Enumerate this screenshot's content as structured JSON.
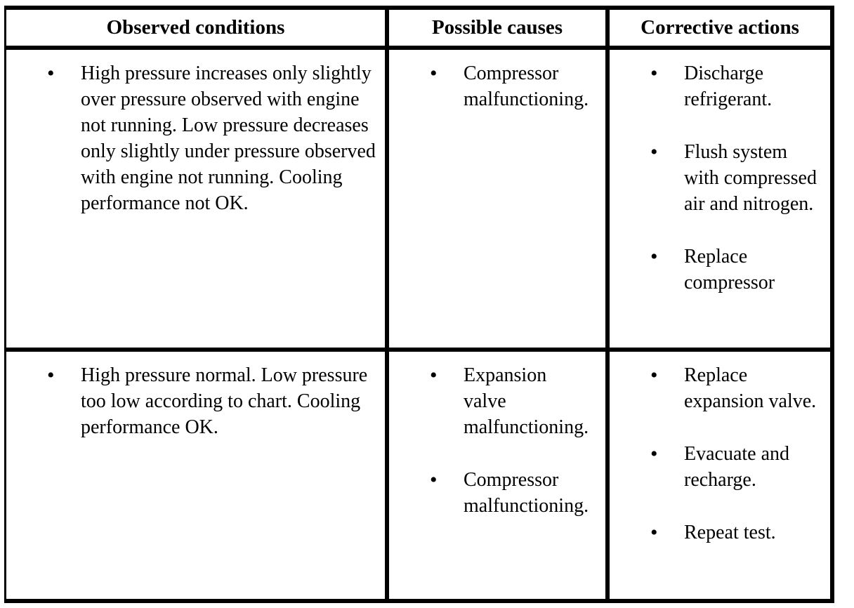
{
  "table": {
    "bullet_glyph": "•",
    "colors": {
      "border": "#000000",
      "background": "#ffffff",
      "text": "#000000"
    },
    "headers": [
      "Observed conditions",
      "Possible causes",
      "Corrective actions"
    ],
    "rows": [
      {
        "cells": [
          {
            "items": [
              "High pressure increases only slightly over pressure observed with engine not running. Low pressure decreases only slightly under pressure observed with engine not running. Cooling performance not OK."
            ]
          },
          {
            "items": [
              "Compressor malfunctioning."
            ]
          },
          {
            "items": [
              "Discharge refrigerant.",
              "Flush system with compressed air and nitrogen.",
              "Replace compressor"
            ]
          }
        ]
      },
      {
        "cells": [
          {
            "items": [
              "High pressure normal. Low pressure too low according to chart. Cooling performance OK."
            ]
          },
          {
            "items": [
              "Expansion valve malfunctioning.",
              "Compressor malfunctioning."
            ]
          },
          {
            "items": [
              "Replace expansion valve.",
              "Evacuate and recharge.",
              "Repeat test."
            ]
          }
        ]
      }
    ]
  }
}
